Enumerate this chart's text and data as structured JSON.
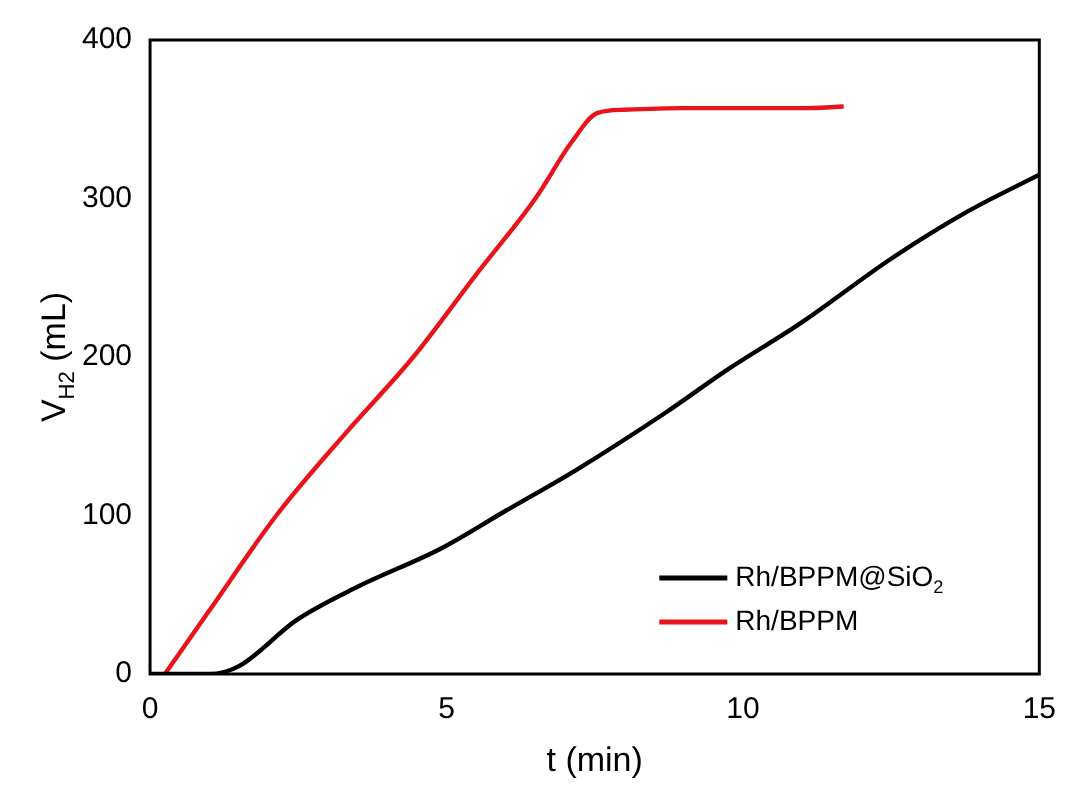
{
  "chart_data": {
    "type": "line",
    "xlabel": "t (min)",
    "ylabel": "V$_{H2}$ (mL)",
    "xlim": [
      0,
      15
    ],
    "xticks": [
      0,
      5,
      10,
      15
    ],
    "ylim": [
      0,
      400
    ],
    "yticks": [
      0,
      100,
      200,
      300,
      400
    ],
    "grid": false,
    "legend": "bottom right",
    "marker": "none",
    "line_style": "solid",
    "series": [
      {
        "name": "Rh/BPPM@SiO$_{2}$",
        "color": "#000000",
        "x": [
          0,
          1.0,
          1.5,
          2.47,
          3.5,
          4.9,
          6,
          7.2,
          8.7,
          9.74,
          11,
          12.5,
          13.8,
          15
        ],
        "values": [
          0,
          0,
          5,
          34,
          55,
          79,
          103,
          129,
          165,
          192,
          222,
          262,
          292,
          315
        ]
      },
      {
        "name": "Rh/BPPM",
        "color": "#e8141b",
        "x": [
          0.25,
          1.0,
          2.13,
          3.3,
          4.44,
          5.5,
          6.5,
          7.1,
          7.55,
          8,
          9,
          10,
          11,
          11.7
        ],
        "values": [
          0,
          40,
          100,
          152,
          200,
          252,
          300,
          335,
          354,
          356,
          357,
          357,
          357,
          358
        ]
      }
    ]
  }
}
